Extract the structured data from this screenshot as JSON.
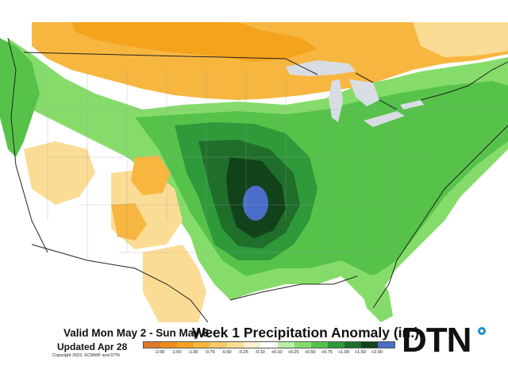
{
  "footer": {
    "valid": "Valid Mon May 2 - Sun May 8",
    "updated": "Updated Apr 28",
    "copyright": "Copyright 2022, ECMWF and DTN",
    "title": "Week 1 Precipitation Anomaly (in.)"
  },
  "legend": {
    "ticks": [
      "-2.00",
      "-1.50",
      "-1.00",
      "-0.75",
      "-0.50",
      "-0.25",
      "-0.10",
      "+0.10",
      "+0.25",
      "+0.50",
      "+0.75",
      "+1.00",
      "+1.50",
      "+2.00"
    ],
    "colors": [
      "#e0782a",
      "#f08c1e",
      "#f5a21c",
      "#f7b640",
      "#f9c96a",
      "#fbdc95",
      "#fdf0d0",
      "#ffffff",
      "#b8eda6",
      "#86dc6a",
      "#56c24a",
      "#2f9a3a",
      "#1f6e2a",
      "#12421a",
      "#4a6ec8"
    ]
  },
  "logo": {
    "text": "DTN"
  },
  "map": {
    "colors": {
      "ocean": "#ffffff",
      "neutral": "#ffffff",
      "dry_light": "#fbdc95",
      "dry": "#f7b640",
      "dry_strong": "#f5a21c",
      "wet_light": "#86dc6a",
      "wet": "#56c24a",
      "wet_mid": "#2f9a3a",
      "wet_strong": "#1f6e2a",
      "wet_max": "#12421a",
      "extreme": "#4a6ec8",
      "lakes": "#d8dde4",
      "borders": "#222222"
    }
  }
}
